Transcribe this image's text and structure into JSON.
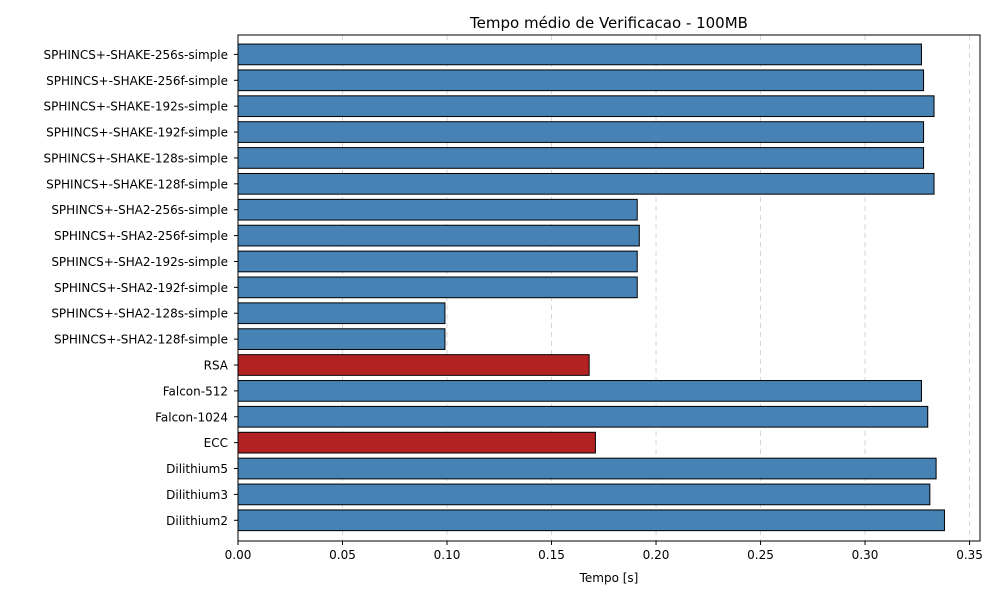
{
  "chart_data": {
    "type": "bar",
    "orientation": "horizontal",
    "title": "Tempo médio de Verificacao - 100MB",
    "xlabel": "Tempo [s]",
    "ylabel": "",
    "xlim": [
      0,
      0.355
    ],
    "xticks": [
      0.0,
      0.05,
      0.1,
      0.15,
      0.2,
      0.25,
      0.3,
      0.35
    ],
    "xtick_labels": [
      "0.00",
      "0.05",
      "0.10",
      "0.15",
      "0.20",
      "0.25",
      "0.30",
      "0.35"
    ],
    "grid": "vertical dashed",
    "categories": [
      "SPHINCS+-SHAKE-256s-simple",
      "SPHINCS+-SHAKE-256f-simple",
      "SPHINCS+-SHAKE-192s-simple",
      "SPHINCS+-SHAKE-192f-simple",
      "SPHINCS+-SHAKE-128s-simple",
      "SPHINCS+-SHAKE-128f-simple",
      "SPHINCS+-SHA2-256s-simple",
      "SPHINCS+-SHA2-256f-simple",
      "SPHINCS+-SHA2-192s-simple",
      "SPHINCS+-SHA2-192f-simple",
      "SPHINCS+-SHA2-128s-simple",
      "SPHINCS+-SHA2-128f-simple",
      "RSA",
      "Falcon-512",
      "Falcon-1024",
      "ECC",
      "Dilithium5",
      "Dilithium3",
      "Dilithium2"
    ],
    "values": [
      0.327,
      0.328,
      0.333,
      0.328,
      0.328,
      0.333,
      0.191,
      0.192,
      0.191,
      0.191,
      0.099,
      0.099,
      0.168,
      0.327,
      0.33,
      0.171,
      0.334,
      0.331,
      0.338
    ],
    "bar_colors": [
      "#4682b4",
      "#4682b4",
      "#4682b4",
      "#4682b4",
      "#4682b4",
      "#4682b4",
      "#4682b4",
      "#4682b4",
      "#4682b4",
      "#4682b4",
      "#4682b4",
      "#4682b4",
      "#b22222",
      "#4682b4",
      "#4682b4",
      "#b22222",
      "#4682b4",
      "#4682b4",
      "#4682b4"
    ],
    "edge_color": "#000000"
  }
}
